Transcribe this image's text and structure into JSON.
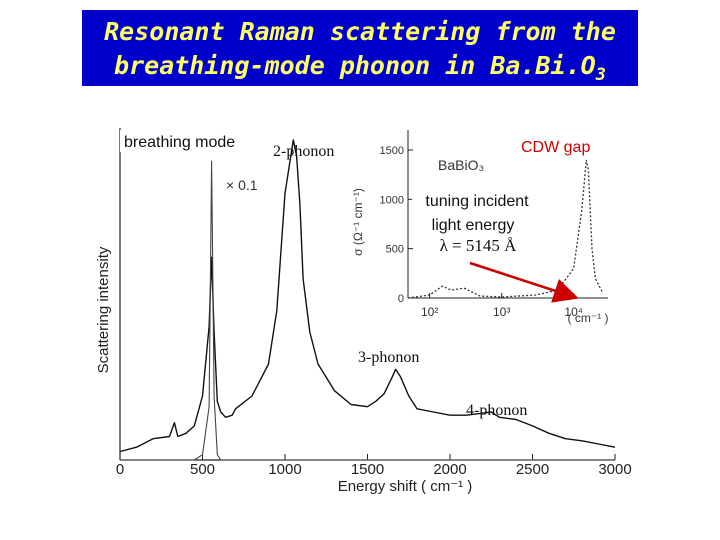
{
  "slide": {
    "title_line1": "Resonant Raman scattering from the",
    "title_line2_main": "breathing-mode phonon in Ba.Bi.O",
    "title_line2_sub": "3"
  },
  "annotations": {
    "breathing_mode": "breathing mode",
    "two_phonon": "2-phonon",
    "three_phonon": "3-phonon",
    "four_phonon": "4-phonon",
    "cdw_gap": "CDW gap",
    "tuning_line1": "tuning incident",
    "tuning_line2": "light energy",
    "lambda": "λ = 5145 Å",
    "scale_factor": "× 0.1"
  },
  "chart_data": [
    {
      "type": "line",
      "xlabel": "Energy  shift   ( cm⁻¹ )",
      "ylabel": "Scattering  intensity",
      "xlim": [
        0,
        3000
      ],
      "xticks": [
        "0",
        "500",
        "1000",
        "1500",
        "2000",
        "2500",
        "3000"
      ],
      "x": [
        0,
        100,
        200,
        300,
        330,
        350,
        400,
        450,
        500,
        540,
        555,
        570,
        590,
        610,
        640,
        680,
        700,
        800,
        900,
        950,
        1000,
        1050,
        1070,
        1090,
        1110,
        1150,
        1200,
        1300,
        1400,
        1500,
        1550,
        1600,
        1650,
        1670,
        1700,
        1750,
        1800,
        1900,
        2000,
        2100,
        2200,
        2250,
        2300,
        2400,
        2500,
        2600,
        2700,
        2800,
        2900,
        3000
      ],
      "series": [
        {
          "values": [
            8,
            12,
            20,
            22,
            35,
            22,
            25,
            32,
            60,
            125,
            190,
            120,
            55,
            45,
            40,
            42,
            48,
            60,
            90,
            140,
            250,
            300,
            285,
            240,
            170,
            120,
            90,
            65,
            52,
            50,
            55,
            62,
            78,
            85,
            78,
            60,
            48,
            45,
            42,
            42,
            44,
            45,
            40,
            38,
            32,
            25,
            20,
            18,
            15,
            12
          ]
        },
        {
          "values": [
            0,
            0,
            0,
            0,
            0,
            0,
            0,
            0,
            5,
            50,
            280,
            60,
            5,
            0,
            0,
            0,
            0,
            0,
            0,
            0,
            0,
            0,
            0,
            0,
            0,
            0,
            0,
            0,
            0,
            0,
            0,
            0,
            0,
            0,
            0,
            0,
            0,
            0,
            0,
            0,
            0,
            0,
            0,
            0,
            0,
            0,
            0,
            0,
            0,
            0
          ]
        }
      ]
    },
    {
      "type": "line",
      "title": "BaBiO₃",
      "xlabel": "( cm⁻¹ )",
      "ylabel": "σ  (Ω⁻¹ cm⁻¹)",
      "xscale": "log",
      "xlim": [
        50,
        30000
      ],
      "ylim": [
        0,
        1500
      ],
      "yticks": [
        "0",
        "500",
        "1000",
        "1500"
      ],
      "xticks": [
        "10²",
        "10³",
        "10⁴"
      ],
      "x": [
        50,
        100,
        150,
        200,
        300,
        500,
        1000,
        3000,
        6000,
        10000,
        13000,
        15000,
        16000,
        17000,
        18000,
        20000,
        25000
      ],
      "series": [
        {
          "values": [
            0,
            30,
            120,
            80,
            100,
            20,
            10,
            30,
            80,
            300,
            900,
            1400,
            1300,
            900,
            500,
            200,
            60
          ]
        }
      ]
    }
  ]
}
